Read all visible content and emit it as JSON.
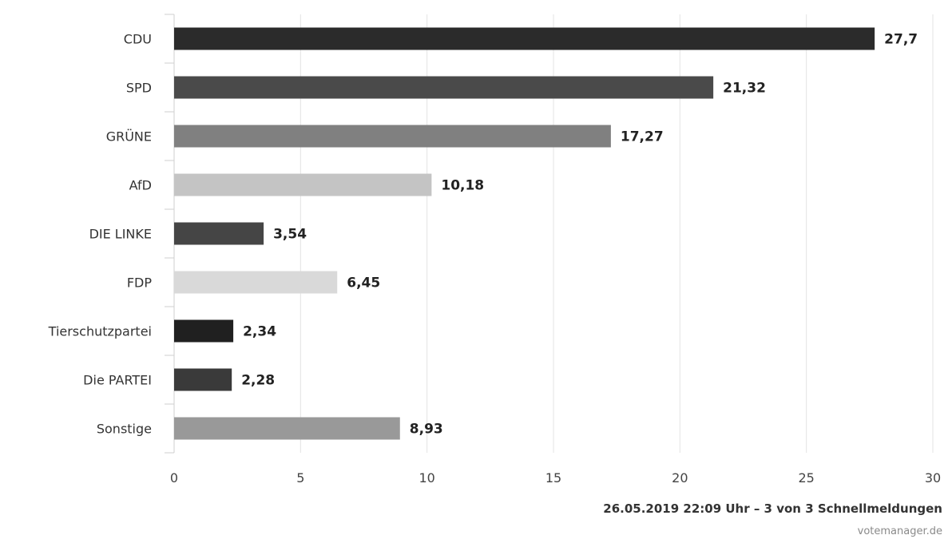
{
  "chart_data": {
    "type": "bar",
    "orientation": "horizontal",
    "categories": [
      "CDU",
      "SPD",
      "GRÜNE",
      "AfD",
      "DIE LINKE",
      "FDP",
      "Tierschutzpartei",
      "Die PARTEI",
      "Sonstige"
    ],
    "values": [
      27.7,
      21.32,
      17.27,
      10.18,
      3.54,
      6.45,
      2.34,
      2.28,
      8.93
    ],
    "value_labels": [
      "27,7",
      "21,32",
      "17,27",
      "10,18",
      "3,54",
      "6,45",
      "2,34",
      "2,28",
      "8,93"
    ],
    "colors": [
      "#2b2b2b",
      "#4a4a4a",
      "#808080",
      "#c4c4c4",
      "#454545",
      "#d9d9d9",
      "#202020",
      "#3a3a3a",
      "#999999"
    ],
    "x_ticks": [
      0,
      5,
      10,
      15,
      20,
      25,
      30
    ],
    "xlim": [
      0,
      30
    ],
    "grid": true,
    "xlabel": "",
    "ylabel": ""
  },
  "footer": {
    "timestamp": "26.05.2019 22:09 Uhr – 3 von 3 Schnellmeldungen",
    "source": "votemanager.de"
  }
}
